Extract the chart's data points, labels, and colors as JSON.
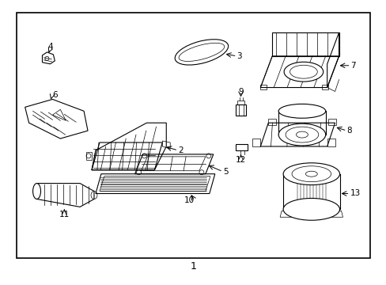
{
  "background_color": "#ffffff",
  "line_color": "#000000",
  "label_color": "#000000",
  "figsize": [
    4.89,
    3.6
  ],
  "dpi": 100,
  "border": [
    0.04,
    0.09,
    0.92,
    0.87
  ],
  "diagram_label": "1"
}
